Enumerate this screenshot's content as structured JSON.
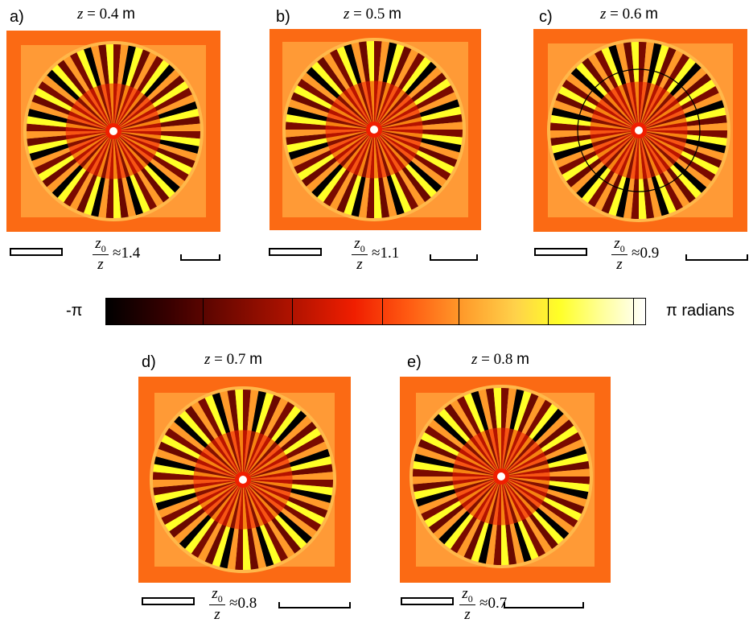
{
  "panels": [
    {
      "letter": "a)",
      "z_value": "0.4",
      "ratio": "1.4"
    },
    {
      "letter": "b)",
      "z_value": "0.5",
      "ratio": "1.1"
    },
    {
      "letter": "c)",
      "z_value": "0.6",
      "ratio": "0.9"
    },
    {
      "letter": "d)",
      "z_value": "0.7",
      "ratio": "0.8"
    },
    {
      "letter": "e)",
      "z_value": "0.8",
      "ratio": "0.7"
    }
  ],
  "z_symbol": "z",
  "equals": "=",
  "z_unit": "m",
  "ratio_numerator": "z",
  "ratio_numerator_sub": "0",
  "ratio_denominator": "z",
  "approx": "≈",
  "colorbar": {
    "min_label": "-π",
    "max_label": "π radians",
    "colors": [
      "#000000",
      "#7a0a00",
      "#f01e00",
      "#ff9a2a",
      "#ffff26",
      "#ffffff"
    ]
  }
}
